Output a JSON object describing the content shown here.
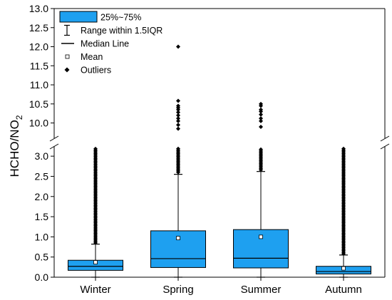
{
  "chart_data": {
    "type": "box",
    "ylabel": "HCHO/NO",
    "ylabel_subscript": "2",
    "categories": [
      "Winter",
      "Spring",
      "Summer",
      "Autumn"
    ],
    "y_axis": {
      "broken": true,
      "lower_range": [
        0,
        3.25
      ],
      "upper_range": [
        9.6,
        13.0
      ],
      "lower_ticks": [
        "0.0",
        "0.5",
        "1.0",
        "1.5",
        "2.0",
        "2.5",
        "3.0"
      ],
      "upper_ticks": [
        "10.0",
        "10.5",
        "11.0",
        "11.5",
        "12.0",
        "12.5",
        "13.0"
      ]
    },
    "series": [
      {
        "category": "Winter",
        "q1": 0.17,
        "median": 0.27,
        "q3": 0.42,
        "whisker_low": 0.0,
        "whisker_high": 0.82,
        "mean": 0.37,
        "outliers_dense_from": 0.85,
        "outliers_dense_to": 3.2,
        "outliers_sparse": []
      },
      {
        "category": "Spring",
        "q1": 0.24,
        "median": 0.46,
        "q3": 1.15,
        "whisker_low": 0.0,
        "whisker_high": 2.55,
        "mean": 0.97,
        "outliers_dense_from": 2.6,
        "outliers_dense_to": 3.2,
        "outliers_sparse": [
          9.85,
          9.95,
          10.05,
          10.12,
          10.2,
          10.28,
          10.35,
          10.4,
          10.45,
          10.58,
          12.0
        ]
      },
      {
        "category": "Summer",
        "q1": 0.23,
        "median": 0.47,
        "q3": 1.18,
        "whisker_low": 0.0,
        "whisker_high": 2.62,
        "mean": 1.0,
        "outliers_dense_from": 2.66,
        "outliers_dense_to": 3.2,
        "outliers_sparse": [
          9.9,
          10.05,
          10.12,
          10.22,
          10.3,
          10.35,
          10.45,
          10.5
        ]
      },
      {
        "category": "Autumn",
        "q1": 0.08,
        "median": 0.14,
        "q3": 0.27,
        "whisker_low": 0.0,
        "whisker_high": 0.55,
        "mean": 0.22,
        "outliers_dense_from": 0.58,
        "outliers_dense_to": 3.2,
        "outliers_sparse": []
      }
    ],
    "box_color": "#1ea0f0",
    "legend": {
      "placement": "top-left",
      "entries": [
        "25%~75%",
        "Range within 1.5IQR",
        "Median Line",
        "Mean",
        "Outliers"
      ]
    }
  }
}
